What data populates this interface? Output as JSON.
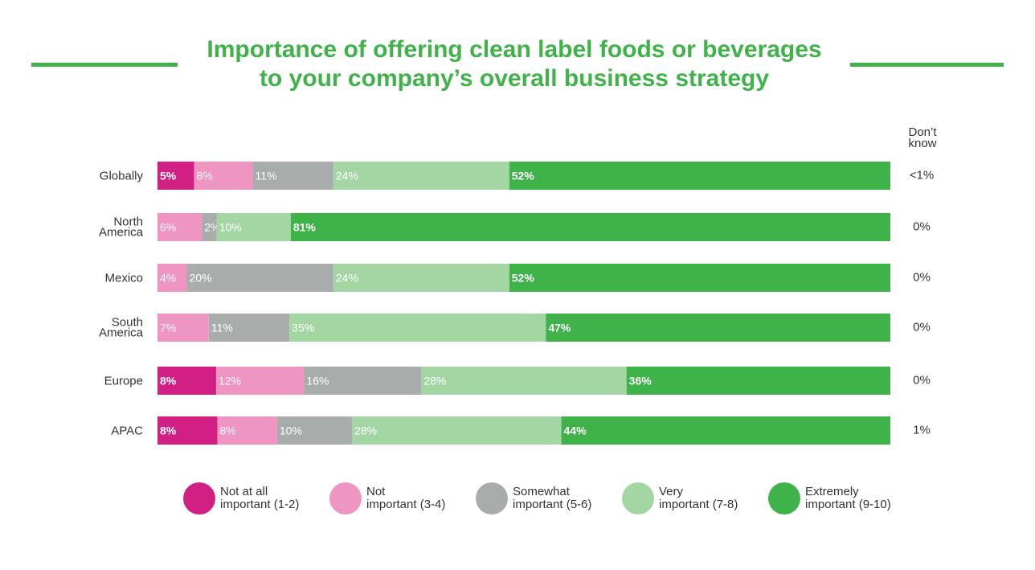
{
  "chart_data": {
    "type": "bar",
    "orientation": "horizontal",
    "stacked": true,
    "title": [
      "Importance of offering clean label foods or beverages",
      "to your company’s overall business strategy"
    ],
    "categories": [
      [
        "Globally"
      ],
      [
        "North",
        "America"
      ],
      [
        "Mexico"
      ],
      [
        "South",
        "America"
      ],
      [
        "Europe"
      ],
      [
        "APAC"
      ]
    ],
    "series": [
      {
        "name": [
          "Not at all",
          "important (1-2)"
        ],
        "color": "#d21f84",
        "values": [
          5,
          0,
          0,
          0,
          8,
          8
        ],
        "labels": [
          "5%",
          "",
          "",
          "",
          "8%",
          "8%"
        ]
      },
      {
        "name": [
          "Not",
          "important (3-4)"
        ],
        "color": "#ee95c2",
        "values": [
          8,
          6,
          4,
          7,
          12,
          8
        ],
        "labels": [
          "8%",
          "6%",
          "4%",
          "7%",
          "12%",
          "8%"
        ]
      },
      {
        "name": [
          "Somewhat",
          "important (5-6)"
        ],
        "color": "#a8adac",
        "values": [
          11,
          2,
          20,
          11,
          16,
          10
        ],
        "labels": [
          "11%",
          "2%",
          "20%",
          "11%",
          "16%",
          "10%"
        ]
      },
      {
        "name": [
          "Very",
          "important (7-8)"
        ],
        "color": "#a3d6a3",
        "values": [
          24,
          10,
          24,
          35,
          28,
          28
        ],
        "labels": [
          "24%",
          "10%",
          "24%",
          "35%",
          "28%",
          "28%"
        ]
      },
      {
        "name": [
          "Extremely",
          "important (9-10)"
        ],
        "color": "#3fb34a",
        "values": [
          52,
          81,
          52,
          47,
          36,
          44
        ],
        "labels": [
          "52%",
          "81%",
          "52%",
          "47%",
          "36%",
          "44%"
        ]
      }
    ],
    "dont_know": {
      "header": [
        "Don’t",
        "know"
      ],
      "values": [
        "<1%",
        "0%",
        "0%",
        "0%",
        "0%",
        "1%"
      ]
    },
    "grid": false,
    "legend_position": "bottom"
  }
}
